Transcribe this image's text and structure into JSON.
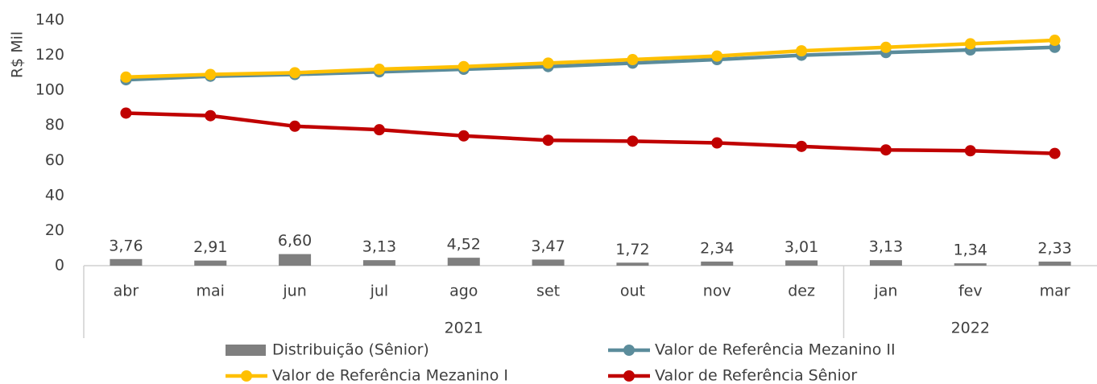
{
  "chart_data": {
    "type": "combo",
    "y_label": "R$ Mil",
    "categories": [
      "abr",
      "mai",
      "jun",
      "jul",
      "ago",
      "set",
      "out",
      "nov",
      "dez",
      "jan",
      "fev",
      "mar"
    ],
    "category_groups": [
      "2021",
      "2021",
      "2021",
      "2021",
      "2021",
      "2021",
      "2021",
      "2021",
      "2021",
      "2022",
      "2022",
      "2022"
    ],
    "ylim": [
      0,
      140
    ],
    "yticks": [
      0,
      20,
      40,
      60,
      80,
      100,
      120,
      140
    ],
    "grid": false,
    "legend": "bottom",
    "series": [
      {
        "name": "Distribuição (Sênior)",
        "type": "bar",
        "color": "#7f7f7f",
        "values": [
          3.76,
          2.91,
          6.6,
          3.13,
          4.52,
          3.47,
          1.72,
          2.34,
          3.01,
          3.13,
          1.34,
          2.33
        ],
        "value_labels": [
          "3,76",
          "2,91",
          "6,60",
          "3,13",
          "4,52",
          "3,47",
          "1,72",
          "2,34",
          "3,01",
          "3,13",
          "1,34",
          "2,33"
        ]
      },
      {
        "name": "Valor de Referência Mezanino II",
        "type": "line",
        "color": "#5b8c9b",
        "values": [
          106,
          108,
          109,
          110.5,
          112,
          113.5,
          115.5,
          117.5,
          120,
          121.5,
          123,
          124.5
        ]
      },
      {
        "name": "Valor de Referência Mezanino I",
        "type": "line",
        "color": "#ffc000",
        "values": [
          107.5,
          109,
          110,
          112,
          113.5,
          115.5,
          117.5,
          119.5,
          122.5,
          124.5,
          126.5,
          128.5
        ]
      },
      {
        "name": "Valor de Referência Sênior",
        "type": "line",
        "color": "#c00000",
        "values": [
          87,
          85.5,
          79.5,
          77.5,
          74,
          71.5,
          71,
          70,
          68,
          66,
          65.5,
          64
        ]
      }
    ]
  }
}
